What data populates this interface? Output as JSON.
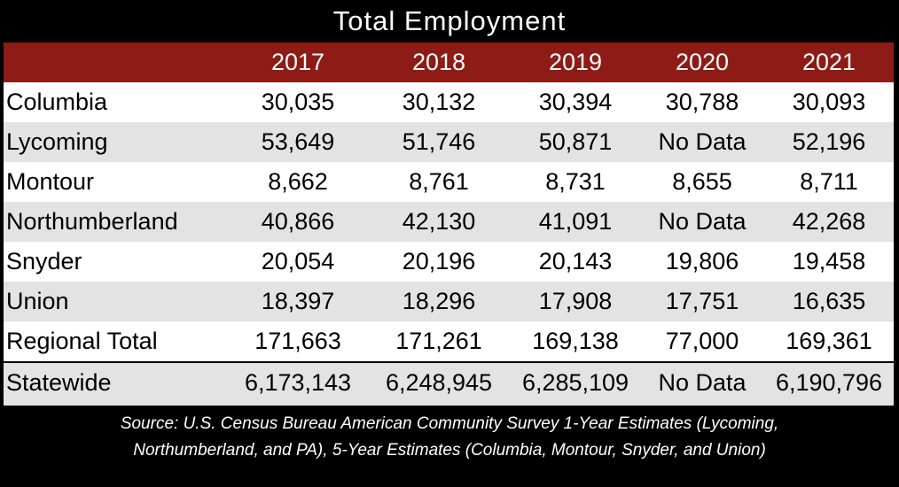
{
  "title": "Total Employment",
  "source": [
    "Source: U.S. Census Bureau American Community Survey 1-Year Estimates (Lycoming,",
    "Northumberland, and PA), 5-Year Estimates (Columbia, Montour, Snyder, and Union)"
  ],
  "chart_data": {
    "type": "table",
    "title": "Total Employment",
    "columns": [
      "2017",
      "2018",
      "2019",
      "2020",
      "2021"
    ],
    "rows": [
      {
        "name": "Columbia",
        "values": [
          "30,035",
          "30,132",
          "30,394",
          "30,788",
          "30,093"
        ]
      },
      {
        "name": "Lycoming",
        "values": [
          "53,649",
          "51,746",
          "50,871",
          "No Data",
          "52,196"
        ]
      },
      {
        "name": "Montour",
        "values": [
          "8,662",
          "8,761",
          "8,731",
          "8,655",
          "8,711"
        ]
      },
      {
        "name": "Northumberland",
        "values": [
          "40,866",
          "42,130",
          "41,091",
          "No Data",
          "42,268"
        ]
      },
      {
        "name": "Snyder",
        "values": [
          "20,054",
          "20,196",
          "20,143",
          "19,806",
          "19,458"
        ]
      },
      {
        "name": "Union",
        "values": [
          "18,397",
          "18,296",
          "17,908",
          "17,751",
          "16,635"
        ]
      },
      {
        "name": "Regional Total",
        "values": [
          "171,663",
          "171,261",
          "169,138",
          "77,000",
          "169,361"
        ]
      },
      {
        "name": "Statewide",
        "values": [
          "6,173,143",
          "6,248,945",
          "6,285,109",
          "No Data",
          "6,190,796"
        ]
      }
    ]
  }
}
